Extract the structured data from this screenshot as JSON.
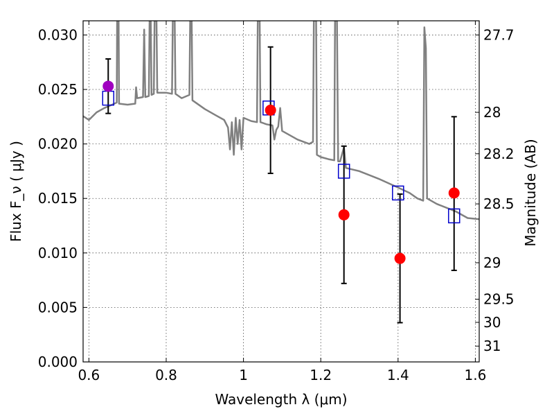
{
  "chart_data": {
    "type": "scatter",
    "title": "",
    "xlabel": "Wavelength  λ (μm)",
    "ylabel": "Flux  F_ν  ( μJy )",
    "ylabel_right": "Magnitude (AB)",
    "xlim": [
      0.585,
      1.61
    ],
    "ylim": [
      0,
      0.0313
    ],
    "x_ticks": [
      0.6,
      0.8,
      1.0,
      1.2,
      1.4,
      1.6
    ],
    "x_tick_labels": [
      "0.6",
      "0.8",
      "1",
      "1.2",
      "1.4",
      "1.6"
    ],
    "y_ticks": [
      0.0,
      0.005,
      0.01,
      0.015,
      0.02,
      0.025,
      0.03
    ],
    "y_tick_labels": [
      "0.000",
      "0.005",
      "0.010",
      "0.015",
      "0.020",
      "0.025",
      "0.030"
    ],
    "mag_ticks": [
      {
        "label": "27.7",
        "flux": 0.03
      },
      {
        "label": "28",
        "flux": 0.0229
      },
      {
        "label": "28.2",
        "flux": 0.0191
      },
      {
        "label": "28.5",
        "flux": 0.0145
      },
      {
        "label": "29",
        "flux": 0.0091
      },
      {
        "label": "29.5",
        "flux": 0.00575
      },
      {
        "label": "30",
        "flux": 0.00363
      },
      {
        "label": "31",
        "flux": 0.00145
      }
    ],
    "grid": true,
    "colors": {
      "model": "#808080",
      "observed": "#ff0000",
      "observed_first": "#a000c0",
      "model_box": "#0000cc",
      "errorbar": "#000000"
    },
    "series": [
      {
        "kind": "model_sed_line",
        "points": [
          [
            0.585,
            0.02255
          ],
          [
            0.6,
            0.0222
          ],
          [
            0.62,
            0.0229
          ],
          [
            0.64,
            0.0233
          ],
          [
            0.66,
            0.0236
          ],
          [
            0.672,
            0.0238
          ],
          [
            0.673,
            0.0313
          ],
          [
            0.677,
            0.0313
          ],
          [
            0.678,
            0.0237
          ],
          [
            0.7,
            0.0236
          ],
          [
            0.72,
            0.0237
          ],
          [
            0.722,
            0.0252
          ],
          [
            0.725,
            0.0242
          ],
          [
            0.74,
            0.0243
          ],
          [
            0.743,
            0.0305
          ],
          [
            0.746,
            0.0243
          ],
          [
            0.755,
            0.0244
          ],
          [
            0.757,
            0.0313
          ],
          [
            0.76,
            0.0313
          ],
          [
            0.762,
            0.0245
          ],
          [
            0.768,
            0.0246
          ],
          [
            0.77,
            0.0313
          ],
          [
            0.775,
            0.0313
          ],
          [
            0.777,
            0.0247
          ],
          [
            0.8,
            0.0247
          ],
          [
            0.815,
            0.0246
          ],
          [
            0.817,
            0.0313
          ],
          [
            0.822,
            0.0313
          ],
          [
            0.824,
            0.0246
          ],
          [
            0.84,
            0.0242
          ],
          [
            0.86,
            0.0245
          ],
          [
            0.862,
            0.0313
          ],
          [
            0.866,
            0.0313
          ],
          [
            0.868,
            0.024
          ],
          [
            0.9,
            0.0232
          ],
          [
            0.93,
            0.0226
          ],
          [
            0.95,
            0.0222
          ],
          [
            0.96,
            0.0215
          ],
          [
            0.965,
            0.0195
          ],
          [
            0.97,
            0.022
          ],
          [
            0.975,
            0.019
          ],
          [
            0.98,
            0.0224
          ],
          [
            0.985,
            0.02
          ],
          [
            0.99,
            0.0222
          ],
          [
            0.995,
            0.0195
          ],
          [
            1.0,
            0.0224
          ],
          [
            1.02,
            0.0221
          ],
          [
            1.035,
            0.022
          ],
          [
            1.037,
            0.0313
          ],
          [
            1.042,
            0.0313
          ],
          [
            1.044,
            0.022
          ],
          [
            1.06,
            0.0218
          ],
          [
            1.075,
            0.0217
          ],
          [
            1.08,
            0.0204
          ],
          [
            1.085,
            0.0213
          ],
          [
            1.09,
            0.0216
          ],
          [
            1.095,
            0.0233
          ],
          [
            1.1,
            0.0212
          ],
          [
            1.14,
            0.0204
          ],
          [
            1.17,
            0.02
          ],
          [
            1.18,
            0.0202
          ],
          [
            1.182,
            0.0313
          ],
          [
            1.188,
            0.0313
          ],
          [
            1.19,
            0.019
          ],
          [
            1.2,
            0.0188
          ],
          [
            1.22,
            0.0186
          ],
          [
            1.235,
            0.0185
          ],
          [
            1.237,
            0.0313
          ],
          [
            1.242,
            0.0313
          ],
          [
            1.245,
            0.0184
          ],
          [
            1.25,
            0.0184
          ],
          [
            1.26,
            0.0197
          ],
          [
            1.265,
            0.0178
          ],
          [
            1.3,
            0.0175
          ],
          [
            1.35,
            0.0168
          ],
          [
            1.4,
            0.016
          ],
          [
            1.43,
            0.0155
          ],
          [
            1.45,
            0.015
          ],
          [
            1.465,
            0.0148
          ],
          [
            1.468,
            0.0307
          ],
          [
            1.472,
            0.0288
          ],
          [
            1.475,
            0.015
          ],
          [
            1.5,
            0.0145
          ],
          [
            1.55,
            0.0138
          ],
          [
            1.58,
            0.0132
          ],
          [
            1.61,
            0.0131
          ]
        ]
      },
      {
        "kind": "observed_points",
        "points": [
          {
            "x": 0.65,
            "y": 0.0253,
            "yerr_low": 0.0228,
            "yerr_high": 0.0278
          },
          {
            "x": 1.07,
            "y": 0.0231,
            "yerr_low": 0.0173,
            "yerr_high": 0.0289
          },
          {
            "x": 1.26,
            "y": 0.0135,
            "yerr_low": 0.0072,
            "yerr_high": 0.0198
          },
          {
            "x": 1.405,
            "y": 0.0095,
            "yerr_low": 0.0036,
            "yerr_high": 0.0154
          },
          {
            "x": 1.545,
            "y": 0.0155,
            "yerr_low": 0.0084,
            "yerr_high": 0.0225
          }
        ]
      },
      {
        "kind": "model_boxes",
        "points": [
          {
            "x": 0.65,
            "y": 0.0242
          },
          {
            "x": 1.065,
            "y": 0.0233
          },
          {
            "x": 1.26,
            "y": 0.0175
          },
          {
            "x": 1.4,
            "y": 0.0155
          },
          {
            "x": 1.545,
            "y": 0.0134
          }
        ]
      }
    ]
  }
}
